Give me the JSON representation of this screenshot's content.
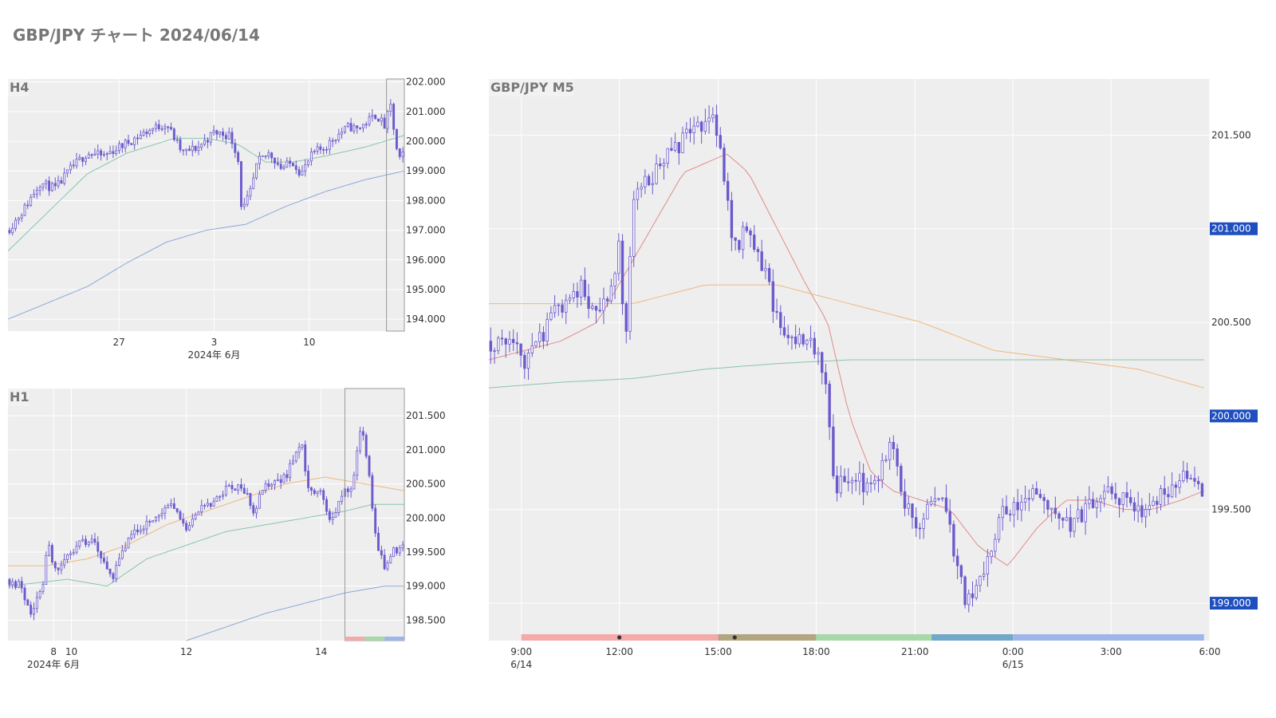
{
  "page_title": "GBP/JPY チャート 2024/06/14",
  "colors": {
    "candle": "#6a5acd",
    "plot_bg": "#eeeeee",
    "grid": "#ffffff",
    "ma_fast": "#e08080",
    "ma_mid": "#f0b070",
    "ma_slow": "#80c0a0",
    "ma_long": "#80a0d0",
    "price_tag": "#1f4fbf",
    "title_text": "#777777"
  },
  "chart_data": [
    {
      "id": "h4",
      "type": "candlestick",
      "title": "H4",
      "ylim": [
        193.6,
        202.1
      ],
      "yticks": [
        "202.000",
        "201.000",
        "200.000",
        "199.000",
        "198.000",
        "197.000",
        "196.000",
        "195.000",
        "194.000"
      ],
      "ytick_values": [
        202,
        201,
        200,
        199,
        198,
        197,
        196,
        195,
        194
      ],
      "xticks": [
        "27",
        "3",
        "10"
      ],
      "xtick_positions": [
        0.28,
        0.52,
        0.76
      ],
      "xlabel_sub": "2024年 6月",
      "highlight_range": [
        0.955,
        1.0
      ],
      "anchors": [
        [
          0,
          197.0
        ],
        [
          0.04,
          197.7
        ],
        [
          0.08,
          198.6
        ],
        [
          0.12,
          198.4
        ],
        [
          0.16,
          199.1
        ],
        [
          0.2,
          199.6
        ],
        [
          0.24,
          199.5
        ],
        [
          0.28,
          199.8
        ],
        [
          0.32,
          200.1
        ],
        [
          0.36,
          200.4
        ],
        [
          0.4,
          200.6
        ],
        [
          0.44,
          199.6
        ],
        [
          0.48,
          199.8
        ],
        [
          0.52,
          200.3
        ],
        [
          0.56,
          200.2
        ],
        [
          0.58,
          199.5
        ],
        [
          0.59,
          197.6
        ],
        [
          0.61,
          198.2
        ],
        [
          0.63,
          199.3
        ],
        [
          0.66,
          199.6
        ],
        [
          0.69,
          199.1
        ],
        [
          0.72,
          199.3
        ],
        [
          0.74,
          198.9
        ],
        [
          0.77,
          199.6
        ],
        [
          0.8,
          199.8
        ],
        [
          0.83,
          200.2
        ],
        [
          0.86,
          200.5
        ],
        [
          0.88,
          200.4
        ],
        [
          0.9,
          200.6
        ],
        [
          0.93,
          200.9
        ],
        [
          0.95,
          200.5
        ],
        [
          0.965,
          201.2
        ],
        [
          0.985,
          199.3
        ],
        [
          1.0,
          199.6
        ]
      ],
      "ma_lines": [
        {
          "color": "ma_slow",
          "anchors": [
            [
              0,
              196.3
            ],
            [
              0.1,
              197.6
            ],
            [
              0.2,
              198.9
            ],
            [
              0.3,
              199.6
            ],
            [
              0.42,
              200.1
            ],
            [
              0.5,
              200.1
            ],
            [
              0.58,
              199.9
            ],
            [
              0.65,
              199.3
            ],
            [
              0.72,
              199.3
            ],
            [
              0.8,
              199.5
            ],
            [
              0.9,
              199.8
            ],
            [
              1.0,
              200.2
            ]
          ]
        },
        {
          "color": "ma_long",
          "anchors": [
            [
              0,
              194.0
            ],
            [
              0.2,
              195.1
            ],
            [
              0.3,
              195.9
            ],
            [
              0.4,
              196.6
            ],
            [
              0.5,
              197.0
            ],
            [
              0.6,
              197.2
            ],
            [
              0.7,
              197.8
            ],
            [
              0.8,
              198.3
            ],
            [
              0.9,
              198.7
            ],
            [
              1.0,
              199.0
            ]
          ]
        }
      ]
    },
    {
      "id": "h1",
      "type": "candlestick",
      "title": "H1",
      "ylim": [
        198.2,
        201.9
      ],
      "yticks": [
        "201.500",
        "201.000",
        "200.500",
        "200.000",
        "199.500",
        "199.000",
        "198.500"
      ],
      "ytick_values": [
        201.5,
        201.0,
        200.5,
        200.0,
        199.5,
        199.0,
        198.5
      ],
      "xticks": [
        "8",
        "10",
        "12",
        "14"
      ],
      "xtick_positions": [
        0.115,
        0.16,
        0.45,
        0.79
      ],
      "xlabel_sub": "2024年 6月",
      "highlight_range": [
        0.85,
        1.0
      ],
      "anchors": [
        [
          0,
          199.1
        ],
        [
          0.03,
          199.0
        ],
        [
          0.06,
          198.6
        ],
        [
          0.09,
          199.1
        ],
        [
          0.1,
          199.7
        ],
        [
          0.12,
          199.2
        ],
        [
          0.15,
          199.4
        ],
        [
          0.18,
          199.6
        ],
        [
          0.21,
          199.7
        ],
        [
          0.24,
          199.4
        ],
        [
          0.26,
          199.1
        ],
        [
          0.29,
          199.5
        ],
        [
          0.32,
          199.8
        ],
        [
          0.35,
          199.9
        ],
        [
          0.38,
          200.1
        ],
        [
          0.42,
          200.2
        ],
        [
          0.45,
          199.8
        ],
        [
          0.48,
          200.1
        ],
        [
          0.52,
          200.2
        ],
        [
          0.56,
          200.5
        ],
        [
          0.6,
          200.4
        ],
        [
          0.62,
          200.1
        ],
        [
          0.65,
          200.5
        ],
        [
          0.7,
          200.6
        ],
        [
          0.74,
          201.1
        ],
        [
          0.76,
          200.4
        ],
        [
          0.79,
          200.4
        ],
        [
          0.81,
          199.9
        ],
        [
          0.84,
          200.3
        ],
        [
          0.87,
          200.5
        ],
        [
          0.89,
          201.4
        ],
        [
          0.91,
          200.7
        ],
        [
          0.93,
          199.6
        ],
        [
          0.95,
          199.3
        ],
        [
          0.97,
          199.5
        ],
        [
          1.0,
          199.6
        ]
      ],
      "ma_lines": [
        {
          "color": "ma_mid",
          "anchors": [
            [
              0,
              199.3
            ],
            [
              0.1,
              199.3
            ],
            [
              0.2,
              199.4
            ],
            [
              0.3,
              199.6
            ],
            [
              0.4,
              199.9
            ],
            [
              0.5,
              200.1
            ],
            [
              0.6,
              200.3
            ],
            [
              0.7,
              200.5
            ],
            [
              0.8,
              200.6
            ],
            [
              0.9,
              200.5
            ],
            [
              1.0,
              200.4
            ]
          ]
        },
        {
          "color": "ma_slow",
          "anchors": [
            [
              0,
              199.0
            ],
            [
              0.15,
              199.1
            ],
            [
              0.25,
              199.0
            ],
            [
              0.35,
              199.4
            ],
            [
              0.45,
              199.6
            ],
            [
              0.55,
              199.8
            ],
            [
              0.65,
              199.9
            ],
            [
              0.75,
              200.0
            ],
            [
              0.85,
              200.1
            ],
            [
              0.92,
              200.2
            ],
            [
              1.0,
              200.2
            ]
          ]
        },
        {
          "color": "ma_long",
          "anchors": [
            [
              0.45,
              198.2
            ],
            [
              0.55,
              198.4
            ],
            [
              0.65,
              198.6
            ],
            [
              0.75,
              198.75
            ],
            [
              0.85,
              198.9
            ],
            [
              0.95,
              199.0
            ],
            [
              1.0,
              199.0
            ]
          ]
        }
      ]
    },
    {
      "id": "m5",
      "type": "candlestick",
      "title": "GBP/JPY M5",
      "ylim": [
        198.8,
        201.8
      ],
      "yticks": [
        "201.500",
        "201.000",
        "200.500",
        "200.000",
        "199.500",
        "199.000"
      ],
      "ytick_values": [
        201.5,
        201.0,
        200.5,
        200.0,
        199.5,
        199.0
      ],
      "price_tags": [
        "201.000",
        "200.000",
        "199.000"
      ],
      "price_tag_values": [
        201.0,
        200.0,
        199.0
      ],
      "xticks": [
        "9:00",
        "12:00",
        "15:00",
        "18:00",
        "21:00",
        "0:00",
        "3:00",
        "6:00"
      ],
      "xtick_positions": [
        0.045,
        0.181,
        0.318,
        0.454,
        0.591,
        0.727,
        0.863,
        1.0
      ],
      "xsub": [
        "6/14",
        "6/15"
      ],
      "xsub_positions": [
        0.045,
        0.727
      ],
      "sessions": [
        {
          "from": 0.045,
          "to": 0.318,
          "color": "#f4aaaa"
        },
        {
          "from": 0.318,
          "to": 0.454,
          "color": "#b2a680"
        },
        {
          "from": 0.454,
          "to": 0.614,
          "color": "#a8d8a8"
        },
        {
          "from": 0.614,
          "to": 0.727,
          "color": "#70a8c8"
        },
        {
          "from": 0.727,
          "to": 0.992,
          "color": "#a0b4ec"
        }
      ],
      "session_markers": [
        0.181,
        0.341
      ],
      "anchors": [
        [
          0,
          200.4
        ],
        [
          0.03,
          200.4
        ],
        [
          0.05,
          200.3
        ],
        [
          0.07,
          200.4
        ],
        [
          0.1,
          200.6
        ],
        [
          0.13,
          200.7
        ],
        [
          0.15,
          200.5
        ],
        [
          0.17,
          200.7
        ],
        [
          0.18,
          200.9
        ],
        [
          0.19,
          200.4
        ],
        [
          0.2,
          201.2
        ],
        [
          0.21,
          201.2
        ],
        [
          0.23,
          201.3
        ],
        [
          0.25,
          201.4
        ],
        [
          0.28,
          201.5
        ],
        [
          0.31,
          201.6
        ],
        [
          0.33,
          201.2
        ],
        [
          0.34,
          200.9
        ],
        [
          0.36,
          201.0
        ],
        [
          0.38,
          200.8
        ],
        [
          0.4,
          200.5
        ],
        [
          0.42,
          200.4
        ],
        [
          0.45,
          200.4
        ],
        [
          0.47,
          200.1
        ],
        [
          0.48,
          199.6
        ],
        [
          0.5,
          199.7
        ],
        [
          0.53,
          199.6
        ],
        [
          0.56,
          199.9
        ],
        [
          0.57,
          199.6
        ],
        [
          0.6,
          199.4
        ],
        [
          0.62,
          199.6
        ],
        [
          0.64,
          199.4
        ],
        [
          0.66,
          199.0
        ],
        [
          0.69,
          199.2
        ],
        [
          0.71,
          199.5
        ],
        [
          0.73,
          199.5
        ],
        [
          0.76,
          199.6
        ],
        [
          0.8,
          199.4
        ],
        [
          0.83,
          199.5
        ],
        [
          0.86,
          199.6
        ],
        [
          0.9,
          199.5
        ],
        [
          0.94,
          199.6
        ],
        [
          0.97,
          199.7
        ],
        [
          0.992,
          199.6
        ]
      ],
      "ma_lines": [
        {
          "color": "ma_fast",
          "anchors": [
            [
              0,
              200.3
            ],
            [
              0.05,
              200.35
            ],
            [
              0.1,
              200.4
            ],
            [
              0.15,
              200.5
            ],
            [
              0.18,
              200.7
            ],
            [
              0.21,
              200.9
            ],
            [
              0.24,
              201.1
            ],
            [
              0.27,
              201.3
            ],
            [
              0.3,
              201.35
            ],
            [
              0.33,
              201.4
            ],
            [
              0.36,
              201.3
            ],
            [
              0.4,
              201.0
            ],
            [
              0.44,
              200.7
            ],
            [
              0.47,
              200.5
            ],
            [
              0.5,
              200.0
            ],
            [
              0.53,
              199.7
            ],
            [
              0.56,
              199.6
            ],
            [
              0.6,
              199.55
            ],
            [
              0.64,
              199.5
            ],
            [
              0.68,
              199.3
            ],
            [
              0.72,
              199.2
            ],
            [
              0.76,
              199.4
            ],
            [
              0.8,
              199.55
            ],
            [
              0.84,
              199.55
            ],
            [
              0.88,
              199.5
            ],
            [
              0.92,
              199.5
            ],
            [
              0.96,
              199.55
            ],
            [
              0.992,
              199.6
            ]
          ]
        },
        {
          "color": "ma_mid",
          "anchors": [
            [
              0,
              200.6
            ],
            [
              0.1,
              200.6
            ],
            [
              0.2,
              200.6
            ],
            [
              0.3,
              200.7
            ],
            [
              0.4,
              200.7
            ],
            [
              0.5,
              200.6
            ],
            [
              0.6,
              200.5
            ],
            [
              0.7,
              200.35
            ],
            [
              0.8,
              200.3
            ],
            [
              0.9,
              200.25
            ],
            [
              0.992,
              200.15
            ]
          ]
        },
        {
          "color": "ma_slow",
          "anchors": [
            [
              0,
              200.15
            ],
            [
              0.1,
              200.18
            ],
            [
              0.2,
              200.2
            ],
            [
              0.3,
              200.25
            ],
            [
              0.4,
              200.28
            ],
            [
              0.5,
              200.3
            ],
            [
              0.6,
              200.3
            ],
            [
              0.7,
              200.3
            ],
            [
              0.8,
              200.3
            ],
            [
              0.9,
              200.3
            ],
            [
              0.992,
              200.3
            ]
          ]
        }
      ]
    }
  ]
}
